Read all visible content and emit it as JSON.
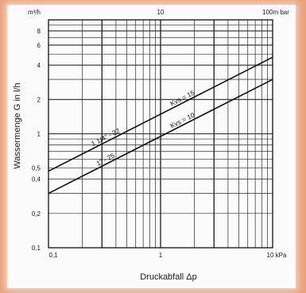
{
  "chart_data": {
    "type": "line",
    "xscale": "log",
    "yscale": "log",
    "xlim": [
      0.1,
      10
    ],
    "ylim": [
      0.1,
      10
    ],
    "xlabel": "Druckabfall Δp",
    "ylabel": "Wassermenge G in l/h",
    "x_top_ticks": [
      {
        "value": 10,
        "label": "10"
      },
      {
        "value": 100,
        "label": "100m bar"
      }
    ],
    "x_ticks": [
      {
        "value": 0.1,
        "label": "0,1"
      },
      {
        "value": 1,
        "label": "1"
      },
      {
        "value": 10,
        "label": "10 kPa"
      }
    ],
    "y_ticks": [
      {
        "value": 0.1,
        "label": "0,1"
      },
      {
        "value": 0.2,
        "label": "0,2"
      },
      {
        "value": 0.4,
        "label": "0,4"
      },
      {
        "value": 0.5,
        "label": "0,5"
      },
      {
        "value": 1,
        "label": "1"
      },
      {
        "value": 2,
        "label": "2"
      },
      {
        "value": 4,
        "label": "4"
      },
      {
        "value": 6,
        "label": "6"
      },
      {
        "value": 8,
        "label": "8"
      },
      {
        "value": 10,
        "label": "m³/h"
      }
    ],
    "grid": true,
    "series": [
      {
        "name": "1 1/4\" - 32",
        "kvs_label": "Kvs = 15",
        "x": [
          0.1,
          10
        ],
        "y": [
          0.47,
          4.7
        ]
      },
      {
        "name": "1\" - 25",
        "kvs_label": "Kvs = 10",
        "x": [
          0.1,
          10
        ],
        "y": [
          0.3,
          3.0
        ]
      }
    ]
  }
}
